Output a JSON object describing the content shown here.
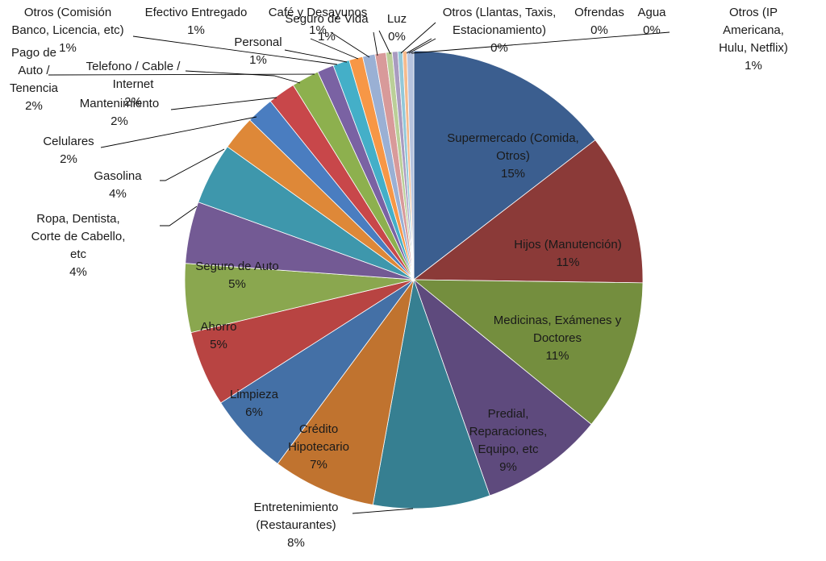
{
  "chart_data": {
    "type": "pie",
    "title": "",
    "legend": "none",
    "slices": [
      {
        "label": "Supermercado (Comida, Otros)",
        "value_label": "15%",
        "value": 15.0,
        "color": "#3B5E8F"
      },
      {
        "label": "Hijos (Manutención)",
        "value_label": "11%",
        "value": 11.0,
        "color": "#8B3A38"
      },
      {
        "label": "Medicinas, Exámenes y Doctores",
        "value_label": "11%",
        "value": 11.0,
        "color": "#748E3E"
      },
      {
        "label": "Predial, Reparaciones, Equipo, etc",
        "value_label": "9%",
        "value": 9.0,
        "color": "#5E4A7D"
      },
      {
        "label": "Entretenimiento (Restaurantes)",
        "value_label": "8%",
        "value": 8.5,
        "color": "#367F91"
      },
      {
        "label": "Crédito Hipotecario",
        "value_label": "7%",
        "value": 7.5,
        "color": "#C0732F"
      },
      {
        "label": "Limpieza",
        "value_label": "6%",
        "value": 6.0,
        "color": "#4470A6"
      },
      {
        "label": "Ahorro",
        "value_label": "5%",
        "value": 5.5,
        "color": "#B84442"
      },
      {
        "label": "Seguro de Auto",
        "value_label": "5%",
        "value": 5.0,
        "color": "#8AA74F"
      },
      {
        "label": "Ropa, Dentista, Corte de Cabello, etc",
        "value_label": "4%",
        "value": 4.5,
        "color": "#735A94"
      },
      {
        "label": "Gasolina",
        "value_label": "4%",
        "value": 4.5,
        "color": "#3E97AC"
      },
      {
        "label": "Celulares",
        "value_label": "2%",
        "value": 2.5,
        "color": "#DE8838"
      },
      {
        "label": "Mantenimiento",
        "value_label": "2%",
        "value": 2.0,
        "color": "#4A7DC0"
      },
      {
        "label": "Telefono / Cable / Internet",
        "value_label": "2%",
        "value": 2.0,
        "color": "#C8474A"
      },
      {
        "label": "Pago de Auto / Tenencia",
        "value_label": "2%",
        "value": 2.0,
        "color": "#8DB04E"
      },
      {
        "label": "Otros (Comisión Banco, Licencia, etc)",
        "value_label": "1%",
        "value": 1.2,
        "color": "#7A62A3"
      },
      {
        "label": "Personal",
        "value_label": "1%",
        "value": 1.2,
        "color": "#44AFC8"
      },
      {
        "label": "Efectivo Entregado",
        "value_label": "1%",
        "value": 1.0,
        "color": "#F79746"
      },
      {
        "label": "Café y Desayunos",
        "value_label": "1%",
        "value": 0.9,
        "color": "#9AB0D4"
      },
      {
        "label": "Seguro de Vida",
        "value_label": "1%",
        "value": 0.8,
        "color": "#D89A9A"
      },
      {
        "label": "Luz",
        "value_label": "0%",
        "value": 0.45,
        "color": "#BBCF98"
      },
      {
        "label": "Otros (Llantas, Taxis, Estacionamiento)",
        "value_label": "0%",
        "value": 0.4,
        "color": "#A99BC0"
      },
      {
        "label": "Ofrendas",
        "value_label": "0%",
        "value": 0.35,
        "color": "#93C8D8"
      },
      {
        "label": "Agua",
        "value_label": "0%",
        "value": 0.3,
        "color": "#F5BA8D"
      },
      {
        "label": "Otros (IP Americana, Hulu, Netflix)",
        "value_label": "1%",
        "value": 0.5,
        "color": "#B6C3DE"
      }
    ]
  }
}
